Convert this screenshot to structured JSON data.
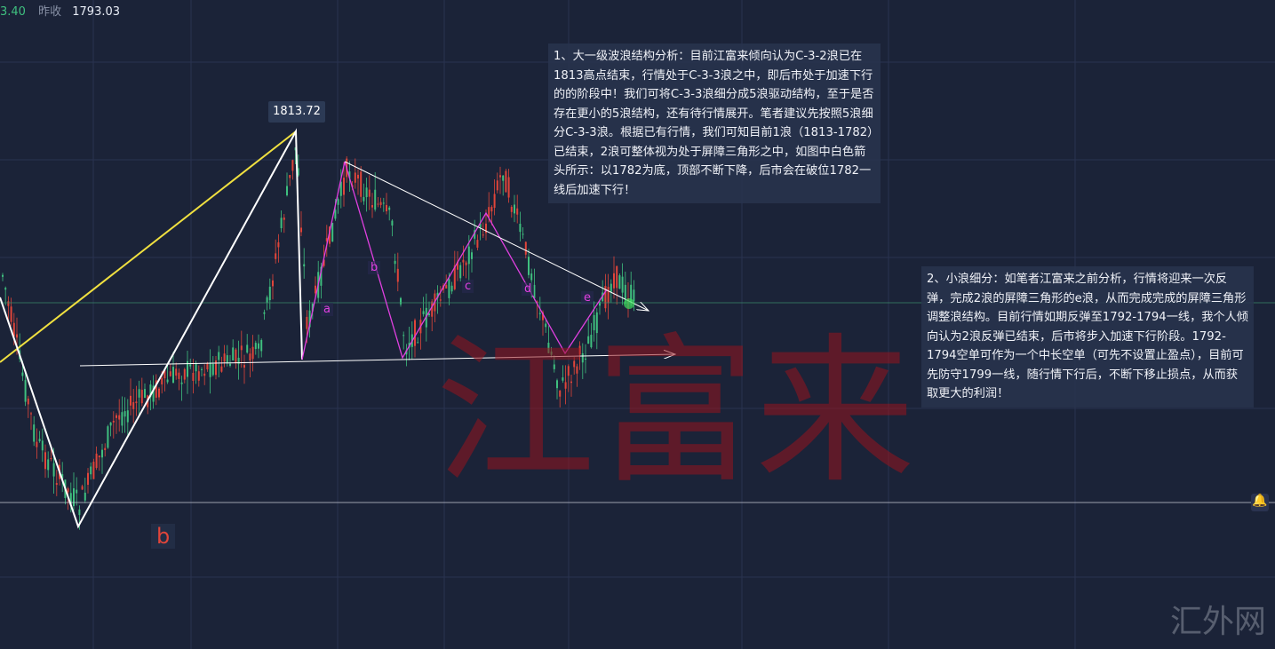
{
  "header": {
    "change_value": "3.40",
    "prev_close_label": "昨收",
    "prev_close_value": "1793.03"
  },
  "chart_data": {
    "type": "candlestick",
    "high_label": "1813.72",
    "wave_labels": [
      "a",
      "b",
      "c",
      "d",
      "e"
    ],
    "big_wave_label": "b",
    "colors": {
      "up": "#e0453a",
      "down": "#3fbf7f",
      "impulse_line": "#ffffff",
      "trend_line": "#f0e040",
      "wave_line": "#e040e0"
    }
  },
  "annotations": {
    "note1": "1、大一级波浪结构分析：目前江富来倾向认为C-3-2浪已在1813高点结束，行情处于C-3-3浪之中，即后市处于加速下行的的阶段中！我们可将C-3-3浪细分成5浪驱动结构，至于是否存在更小的5浪结构，还有待行情展开。笔者建议先按照5浪细分C-3-3浪。根据已有行情，我们可知目前1浪（1813-1782）已结束，2浪可整体视为处于屏障三角形之中，如图中白色箭头所示：以1782为底，顶部不断下降，后市会在破位1782一线后加速下行！",
    "note2": "2、小浪细分：如笔者江富来之前分析，行情将迎来一次反弹，完成2浪的屏障三角形的e浪，从而完成完成的屏障三角形调整浪结构。目前行情如期反弹至1792-1794一线，我个人倾向认为2浪反弹已结束，后市将步入加速下行阶段。1792-1794空单可作为一个中长空单（可先不设置止盈点），目前可先防守1799一线，随行情下行后，不断下移止损点，从而获取更大的利润！"
  },
  "watermark": "江富来",
  "brand": "汇外网",
  "icons": {
    "alert": "bell-icon"
  }
}
